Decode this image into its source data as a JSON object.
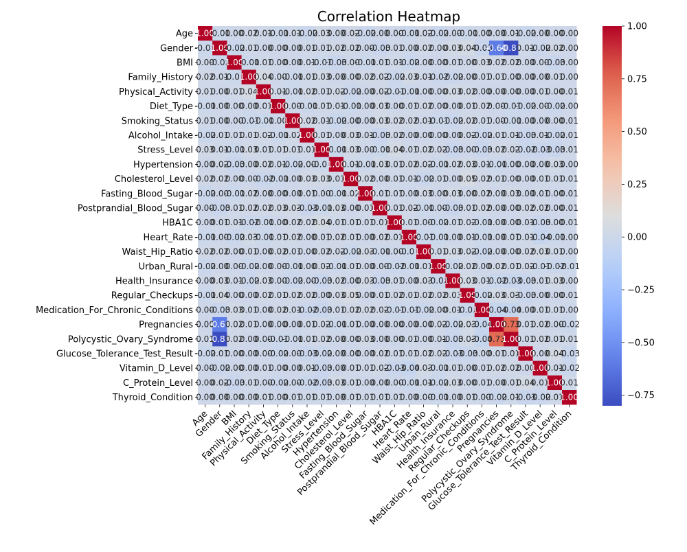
{
  "chart_data": {
    "type": "heatmap",
    "title": "Correlation Heatmap",
    "xlabel": "",
    "ylabel": "",
    "labels": [
      "Age",
      "Gender",
      "BMI",
      "Family_History",
      "Physical_Activity",
      "Diet_Type",
      "Smoking_Status",
      "Alcohol_Intake",
      "Stress_Level",
      "Hypertension",
      "Cholesterol_Level",
      "Fasting_Blood_Sugar",
      "Postprandial_Blood_Sugar",
      "HBA1C",
      "Heart_Rate",
      "Waist_Hip_Ratio",
      "Urban_Rural",
      "Health_Insurance",
      "Regular_Checkups",
      "Medication_For_Chronic_Conditions",
      "Pregnancies",
      "Polycystic_Ovary_Syndrome",
      "Glucose_Tolerance_Test_Result",
      "Vitamin_D_Level",
      "C_Protein_Level",
      "Thyroid_Condition"
    ],
    "matrix": [
      [
        1.0,
        -0.01,
        0.0,
        0.02,
        0.01,
        -0.01,
        0.01,
        -0.02,
        0.03,
        0.0,
        0.02,
        -0.02,
        -0.0,
        -0.0,
        -0.01,
        0.02,
        -0.02,
        0.0,
        -0.01,
        -0.0,
        -0.0,
        0.01,
        -0.02,
        -0.0,
        -0.0,
        0.0
      ],
      [
        -0.01,
        1.0,
        -0.02,
        0.01,
        0.0,
        -0.0,
        -0.0,
        0.01,
        0.01,
        0.02,
        0.02,
        0.0,
        -0.03,
        0.01,
        -0.0,
        0.02,
        -0.0,
        0.03,
        0.04,
        -0.03,
        -0.6,
        -0.8,
        0.01,
        -0.02,
        0.02,
        0.0
      ],
      [
        0.0,
        -0.02,
        1.0,
        -0.01,
        0.01,
        0.0,
        0.0,
        0.01,
        -0.01,
        -0.03,
        0.0,
        -0.01,
        0.01,
        0.01,
        -0.02,
        0.0,
        0.0,
        0.01,
        -0.0,
        0.03,
        0.02,
        0.02,
        -0.0,
        0.0,
        -0.03,
        0.0
      ],
      [
        0.02,
        0.01,
        -0.01,
        1.0,
        0.04,
        0.0,
        -0.01,
        0.01,
        0.03,
        0.0,
        0.0,
        0.02,
        0.02,
        -0.02,
        0.03,
        0.01,
        -0.02,
        -0.02,
        0.0,
        0.01,
        0.01,
        0.0,
        -0.0,
        -0.0,
        0.01,
        0.0
      ],
      [
        0.01,
        0.0,
        0.01,
        0.04,
        1.0,
        0.01,
        -0.01,
        0.02,
        0.01,
        0.02,
        -0.02,
        -0.0,
        0.02,
        -0.01,
        -0.01,
        0.0,
        -0.0,
        0.03,
        0.02,
        0.0,
        0.0,
        0.0,
        -0.0,
        0.01,
        0.0,
        0.01
      ],
      [
        -0.01,
        -0.0,
        0.0,
        0.0,
        0.01,
        1.0,
        0.0,
        -0.01,
        0.01,
        0.01,
        -0.01,
        -0.0,
        0.03,
        0.0,
        0.01,
        0.02,
        0.0,
        -0.0,
        0.01,
        0.02,
        0.0,
        -0.01,
        -0.02,
        0.0,
        -0.02,
        0.0
      ],
      [
        0.01,
        -0.0,
        0.0,
        -0.01,
        -0.01,
        0.0,
        1.0,
        0.02,
        0.01,
        -0.02,
        0.0,
        -0.0,
        0.03,
        0.02,
        0.02,
        0.01,
        -0.01,
        -0.02,
        0.02,
        0.01,
        0.0,
        -0.01,
        -0.0,
        0.0,
        -0.0,
        0.01
      ],
      [
        -0.02,
        0.01,
        0.01,
        0.01,
        0.02,
        -0.01,
        0.02,
        1.0,
        0.01,
        0.0,
        0.03,
        0.01,
        -0.03,
        0.02,
        0.0,
        -0.0,
        0.0,
        0.0,
        0.02,
        -0.02,
        0.01,
        0.01,
        -0.03,
        0.01,
        -0.02,
        0.01
      ],
      [
        0.03,
        0.01,
        -0.01,
        0.03,
        0.01,
        0.01,
        0.01,
        0.01,
        1.0,
        -0.01,
        0.03,
        0.0,
        -0.01,
        0.04,
        0.01,
        0.02,
        0.02,
        -0.03,
        -0.0,
        -0.03,
        0.02,
        0.02,
        -0.02,
        -0.03,
        -0.03,
        0.01
      ],
      [
        0.0,
        0.02,
        -0.03,
        0.0,
        0.02,
        0.01,
        -0.02,
        0.0,
        -0.01,
        1.0,
        0.01,
        -0.01,
        0.03,
        0.01,
        0.02,
        0.02,
        -0.01,
        0.02,
        0.03,
        0.01,
        -0.01,
        -0.0,
        0.0,
        -0.0,
        0.03,
        -0.0
      ],
      [
        0.02,
        0.02,
        0.0,
        0.0,
        -0.02,
        -0.01,
        0.0,
        0.03,
        0.03,
        0.01,
        1.0,
        0.02,
        0.0,
        0.01,
        0.01,
        -0.02,
        0.01,
        0.0,
        0.05,
        0.02,
        0.01,
        0.0,
        0.0,
        0.01,
        0.01,
        0.01
      ],
      [
        -0.02,
        0.0,
        -0.01,
        0.02,
        -0.0,
        -0.0,
        -0.0,
        0.01,
        0.0,
        -0.01,
        0.02,
        1.0,
        0.01,
        0.01,
        0.0,
        0.03,
        -0.0,
        0.03,
        0.0,
        0.02,
        -0.0,
        0.03,
        0.0,
        0.01,
        -0.0,
        0.01
      ],
      [
        -0.0,
        -0.03,
        0.01,
        0.02,
        0.02,
        0.03,
        0.03,
        -0.03,
        -0.01,
        0.03,
        0.0,
        0.01,
        1.0,
        0.01,
        0.02,
        -0.01,
        -0.0,
        -0.03,
        0.01,
        0.02,
        -0.0,
        0.0,
        0.02,
        0.02,
        0.0,
        0.01
      ],
      [
        -0.0,
        0.01,
        0.01,
        -0.02,
        -0.01,
        0.0,
        0.02,
        0.02,
        0.04,
        0.01,
        0.01,
        0.01,
        0.01,
        1.0,
        0.01,
        0.0,
        -0.02,
        0.01,
        0.02,
        -0.01,
        -0.0,
        0.0,
        0.01,
        -0.03,
        0.0,
        0.01
      ],
      [
        -0.01,
        -0.0,
        -0.02,
        0.03,
        -0.01,
        0.01,
        0.02,
        0.0,
        0.01,
        0.02,
        0.01,
        0.0,
        0.02,
        0.01,
        1.0,
        -0.01,
        -0.01,
        0.0,
        0.01,
        -0.01,
        0.0,
        0.01,
        0.01,
        -0.04,
        -0.01,
        0.0
      ],
      [
        0.02,
        0.02,
        0.0,
        0.01,
        0.0,
        0.02,
        0.01,
        -0.0,
        0.02,
        0.02,
        -0.02,
        0.03,
        -0.01,
        0.0,
        -0.01,
        1.0,
        0.01,
        0.03,
        0.02,
        -0.02,
        0.0,
        0.0,
        0.02,
        0.03,
        0.01,
        0.0
      ],
      [
        -0.02,
        -0.0,
        0.0,
        -0.02,
        -0.0,
        0.0,
        -0.01,
        0.0,
        0.02,
        -0.01,
        0.01,
        -0.0,
        -0.0,
        -0.02,
        -0.01,
        0.01,
        1.0,
        -0.02,
        0.02,
        -0.0,
        0.02,
        0.01,
        0.02,
        -0.01,
        -0.02,
        -0.01
      ],
      [
        0.0,
        0.03,
        0.01,
        -0.02,
        0.03,
        -0.0,
        -0.02,
        0.0,
        -0.03,
        0.02,
        0.0,
        0.03,
        -0.03,
        0.01,
        0.0,
        0.03,
        -0.02,
        1.0,
        0.03,
        0.01,
        -0.02,
        -0.03,
        -0.03,
        0.01,
        0.03,
        0.0
      ],
      [
        -0.01,
        0.04,
        -0.0,
        0.0,
        0.02,
        0.01,
        0.02,
        0.02,
        -0.0,
        0.03,
        0.05,
        0.0,
        0.01,
        0.02,
        0.01,
        0.02,
        0.02,
        0.03,
        1.0,
        -0.02,
        0.03,
        0.03,
        -0.03,
        -0.0,
        -0.0,
        0.01
      ],
      [
        -0.0,
        -0.03,
        0.03,
        0.01,
        0.0,
        0.02,
        0.01,
        -0.02,
        -0.03,
        0.01,
        0.02,
        0.02,
        0.02,
        -0.01,
        -0.01,
        -0.02,
        -0.0,
        0.01,
        -0.02,
        1.0,
        -0.04,
        -0.04,
        0.0,
        0.01,
        0.01,
        0.0
      ],
      [
        -0.0,
        -0.6,
        0.02,
        0.01,
        0.0,
        0.0,
        0.0,
        0.01,
        0.02,
        -0.01,
        0.01,
        -0.0,
        -0.0,
        -0.0,
        0.0,
        0.0,
        0.02,
        -0.02,
        0.03,
        -0.04,
        1.0,
        0.73,
        0.01,
        0.02,
        0.0,
        -0.02
      ],
      [
        0.01,
        -0.8,
        0.02,
        0.0,
        0.0,
        -0.01,
        -0.01,
        0.01,
        0.02,
        -0.0,
        0.0,
        0.03,
        0.0,
        0.0,
        0.01,
        0.0,
        0.01,
        -0.03,
        0.03,
        -0.04,
        0.73,
        1.0,
        0.01,
        0.02,
        0.01,
        0.01
      ],
      [
        -0.02,
        0.01,
        -0.0,
        -0.0,
        -0.0,
        -0.02,
        -0.0,
        -0.03,
        -0.02,
        0.0,
        0.0,
        0.0,
        0.02,
        0.01,
        0.01,
        0.02,
        0.02,
        -0.03,
        -0.03,
        0.0,
        0.01,
        0.01,
        1.0,
        0.0,
        0.04,
        -0.03
      ],
      [
        -0.0,
        -0.02,
        0.0,
        -0.0,
        0.01,
        0.0,
        0.0,
        0.01,
        -0.03,
        -0.0,
        0.01,
        0.01,
        0.02,
        -0.03,
        -0.04,
        0.03,
        -0.01,
        0.01,
        -0.0,
        0.01,
        0.02,
        0.02,
        0.0,
        1.0,
        0.01,
        -0.02
      ],
      [
        -0.0,
        0.02,
        -0.03,
        0.01,
        0.0,
        -0.02,
        -0.0,
        -0.02,
        -0.03,
        0.03,
        0.01,
        -0.0,
        0.0,
        0.0,
        -0.01,
        0.01,
        -0.02,
        0.03,
        -0.0,
        0.01,
        0.0,
        0.01,
        0.04,
        0.01,
        1.0,
        0.01
      ],
      [
        0.0,
        0.0,
        0.0,
        0.0,
        0.01,
        0.0,
        0.01,
        0.01,
        0.01,
        -0.0,
        0.01,
        0.01,
        0.01,
        0.01,
        0.0,
        0.0,
        -0.01,
        0.0,
        0.01,
        0.0,
        -0.02,
        0.01,
        -0.03,
        -0.02,
        0.01,
        1.0
      ]
    ],
    "colormap": "coolwarm",
    "vmin": -0.8,
    "vmax": 1.0,
    "colorbar_ticks": [
      1.0,
      0.75,
      0.5,
      0.25,
      0.0,
      -0.25,
      -0.5,
      -0.75
    ],
    "colorbar_tick_labels": [
      "1.00",
      "0.75",
      "0.50",
      "0.25",
      "0.00",
      "−0.25",
      "−0.50",
      "−0.75"
    ],
    "annotations_format": "2 decimals",
    "legend": "colorbar right"
  }
}
